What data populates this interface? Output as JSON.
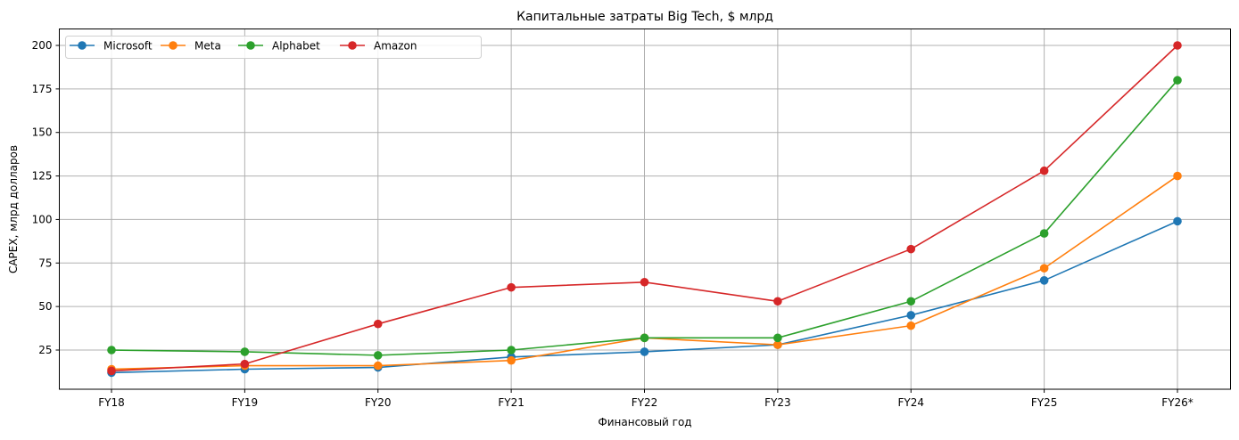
{
  "chart_data": {
    "type": "line",
    "title": "Капитальные затраты Big Tech, $ млрд",
    "xlabel": "Финансовый год",
    "ylabel": "CAPEX, млрд долларов",
    "categories": [
      "FY18",
      "FY19",
      "FY20",
      "FY21",
      "FY22",
      "FY23",
      "FY24",
      "FY25",
      "FY26*"
    ],
    "yticks": [
      25,
      50,
      75,
      100,
      125,
      150,
      175,
      200
    ],
    "ylim": [
      2.5,
      209
    ],
    "grid": true,
    "legend_position": "upper left",
    "series": [
      {
        "name": "Microsoft",
        "color": "#1f77b4",
        "values": [
          12,
          14,
          15,
          21,
          24,
          28,
          45,
          65,
          99
        ]
      },
      {
        "name": "Meta",
        "color": "#ff7f0e",
        "values": [
          14,
          16,
          16,
          19,
          32,
          28,
          39,
          72,
          125
        ]
      },
      {
        "name": "Alphabet",
        "color": "#2ca02c",
        "values": [
          25,
          24,
          22,
          25,
          32,
          32,
          53,
          92,
          180
        ]
      },
      {
        "name": "Amazon",
        "color": "#d62728",
        "values": [
          13,
          17,
          40,
          61,
          64,
          53,
          83,
          128,
          200
        ]
      }
    ]
  }
}
